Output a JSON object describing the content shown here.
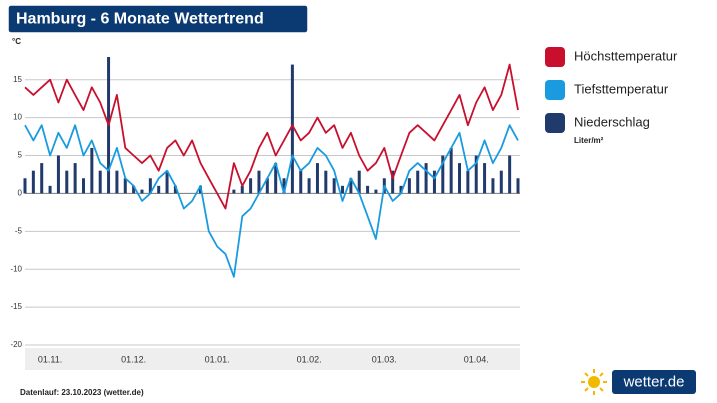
{
  "chart_data": {
    "type": "line",
    "title": "Hamburg - 6 Monate Wettertrend",
    "y_label": "°C",
    "footnote": "Datenlauf: 23.10.2023 (wetter.de)",
    "logo": "wetter.de",
    "categories": [
      null,
      null,
      null,
      "01.11.",
      null,
      null,
      null,
      null,
      null,
      null,
      null,
      null,
      null,
      "01.12.",
      null,
      null,
      null,
      null,
      null,
      null,
      null,
      null,
      null,
      "01.01.",
      null,
      null,
      null,
      null,
      null,
      null,
      null,
      null,
      null,
      null,
      "01.02.",
      null,
      null,
      null,
      null,
      null,
      null,
      null,
      null,
      "01.03.",
      null,
      null,
      null,
      null,
      null,
      null,
      null,
      null,
      null,
      null,
      "01.04.",
      null,
      null,
      null,
      null,
      null
    ],
    "series": [
      {
        "name": "Höchsttemperatur",
        "type": "line",
        "color": "#c8102e",
        "values": [
          14,
          13,
          14,
          15,
          12,
          15,
          13,
          11,
          14,
          12,
          9,
          13,
          6,
          5,
          4,
          5,
          3,
          6,
          7,
          5,
          7,
          4,
          2,
          0,
          -2,
          4,
          1,
          3,
          6,
          8,
          5,
          7,
          9,
          7,
          8,
          10,
          8,
          9,
          6,
          8,
          5,
          3,
          4,
          6,
          2,
          5,
          8,
          9,
          8,
          7,
          9,
          11,
          13,
          9,
          12,
          14,
          11,
          13,
          17,
          11
        ]
      },
      {
        "name": "Tiefsttemperatur",
        "type": "line",
        "color": "#1a9be0",
        "values": [
          9,
          7,
          9,
          5,
          8,
          6,
          9,
          5,
          7,
          4,
          3,
          6,
          2,
          1,
          -1,
          0,
          2,
          3,
          1,
          -2,
          -1,
          1,
          -5,
          -7,
          -8,
          -11,
          -3,
          -2,
          0,
          2,
          4,
          0,
          5,
          3,
          4,
          6,
          5,
          3,
          -1,
          2,
          0,
          -3,
          -6,
          1,
          -1,
          0,
          3,
          4,
          3,
          2,
          4,
          6,
          8,
          3,
          4,
          7,
          4,
          6,
          9,
          7
        ]
      },
      {
        "name": "Niederschlag",
        "type": "bar",
        "color": "#1f3a6b",
        "unit": "Liter/m²",
        "values": [
          2,
          3,
          4,
          1,
          5,
          3,
          4,
          2,
          6,
          3,
          18,
          3,
          2,
          1,
          0.5,
          2,
          1,
          3,
          1,
          0,
          0,
          1,
          0,
          0,
          0,
          0.5,
          1,
          2,
          3,
          2,
          4,
          2,
          17,
          3,
          2,
          4,
          3,
          2,
          1,
          2,
          3,
          1,
          0.5,
          2,
          3,
          1,
          2,
          3,
          4,
          3,
          5,
          6,
          4,
          3,
          5,
          4,
          2,
          3,
          5,
          2
        ]
      }
    ],
    "ylim": [
      -20,
      18
    ],
    "yticks": [
      -20,
      -15,
      -10,
      -5,
      0,
      5,
      10,
      15
    ],
    "grid": true,
    "legend": "right"
  }
}
